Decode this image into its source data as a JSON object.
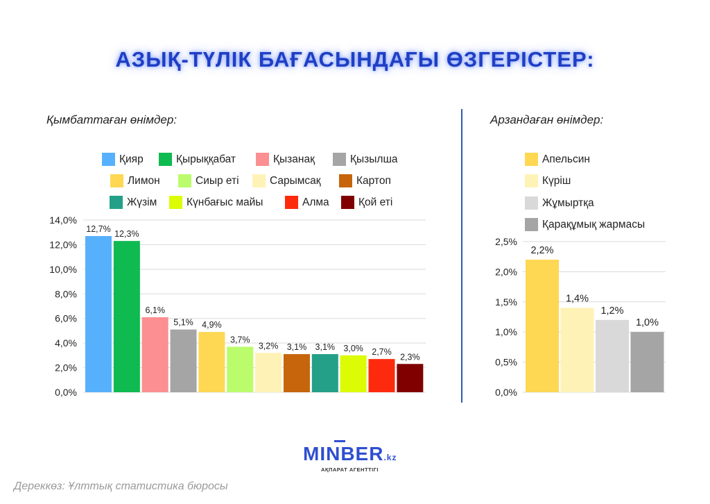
{
  "title": "АЗЫҚ-ТҮЛІК БАҒАСЫНДАҒЫ ӨЗГЕРІСТЕР:",
  "left_subtitle": "Қымбаттаған өнімдер:",
  "right_subtitle": "Арзандаған өнімдер:",
  "source": "Дереккөз: Ұлттық статистика бюросы",
  "logo": {
    "main": "MINBER",
    "suffix": ".kz",
    "sub": "АҚПАРАТ АГЕНТТІГІ"
  },
  "chart_data": [
    {
      "type": "bar",
      "title": "Қымбаттаған өнімдер:",
      "categories": [
        "Қияр",
        "Қырыққабат",
        "Қызанақ",
        "Қызылша",
        "Лимон",
        "Сиыр еті",
        "Сарымсақ",
        "Картоп",
        "Жүзім",
        "Күнбағыс майы",
        "Алма",
        "Қой еті"
      ],
      "values": [
        12.7,
        12.3,
        6.1,
        5.1,
        4.9,
        3.7,
        3.2,
        3.1,
        3.1,
        3.0,
        2.7,
        2.3
      ],
      "value_labels": [
        "12,7%",
        "12,3%",
        "6,1%",
        "5,1%",
        "4,9%",
        "3,7%",
        "3,2%",
        "3,1%",
        "3,1%",
        "3,0%",
        "2,7%",
        "2,3%"
      ],
      "colors": [
        "#57b0fb",
        "#0fba50",
        "#fb8f91",
        "#a5a5a5",
        "#fed753",
        "#bafc6c",
        "#fff2b6",
        "#c6650c",
        "#24a088",
        "#dcfc06",
        "#fe2a0e",
        "#800000"
      ],
      "ylim": [
        0,
        14
      ],
      "yticks": [
        "0,0%",
        "2,0%",
        "4,0%",
        "6,0%",
        "8,0%",
        "10,0%",
        "12,0%",
        "14,0%"
      ],
      "legend_position": "top",
      "grid": true
    },
    {
      "type": "bar",
      "title": "Арзандаған өнімдер:",
      "categories": [
        "Апельсин",
        "Күріш",
        "Жұмыртқа",
        "Қарақұмық жармасы"
      ],
      "values": [
        2.2,
        1.4,
        1.2,
        1.0
      ],
      "value_labels": [
        "2,2%",
        "1,4%",
        "1,2%",
        "1,0%"
      ],
      "colors": [
        "#fed753",
        "#fff2b6",
        "#d9d9d9",
        "#a5a5a5"
      ],
      "ylim": [
        0,
        2.5
      ],
      "yticks": [
        "0,0%",
        "0,5%",
        "1,0%",
        "1,5%",
        "2,0%",
        "2,5%"
      ],
      "legend_position": "top",
      "grid": true
    }
  ]
}
